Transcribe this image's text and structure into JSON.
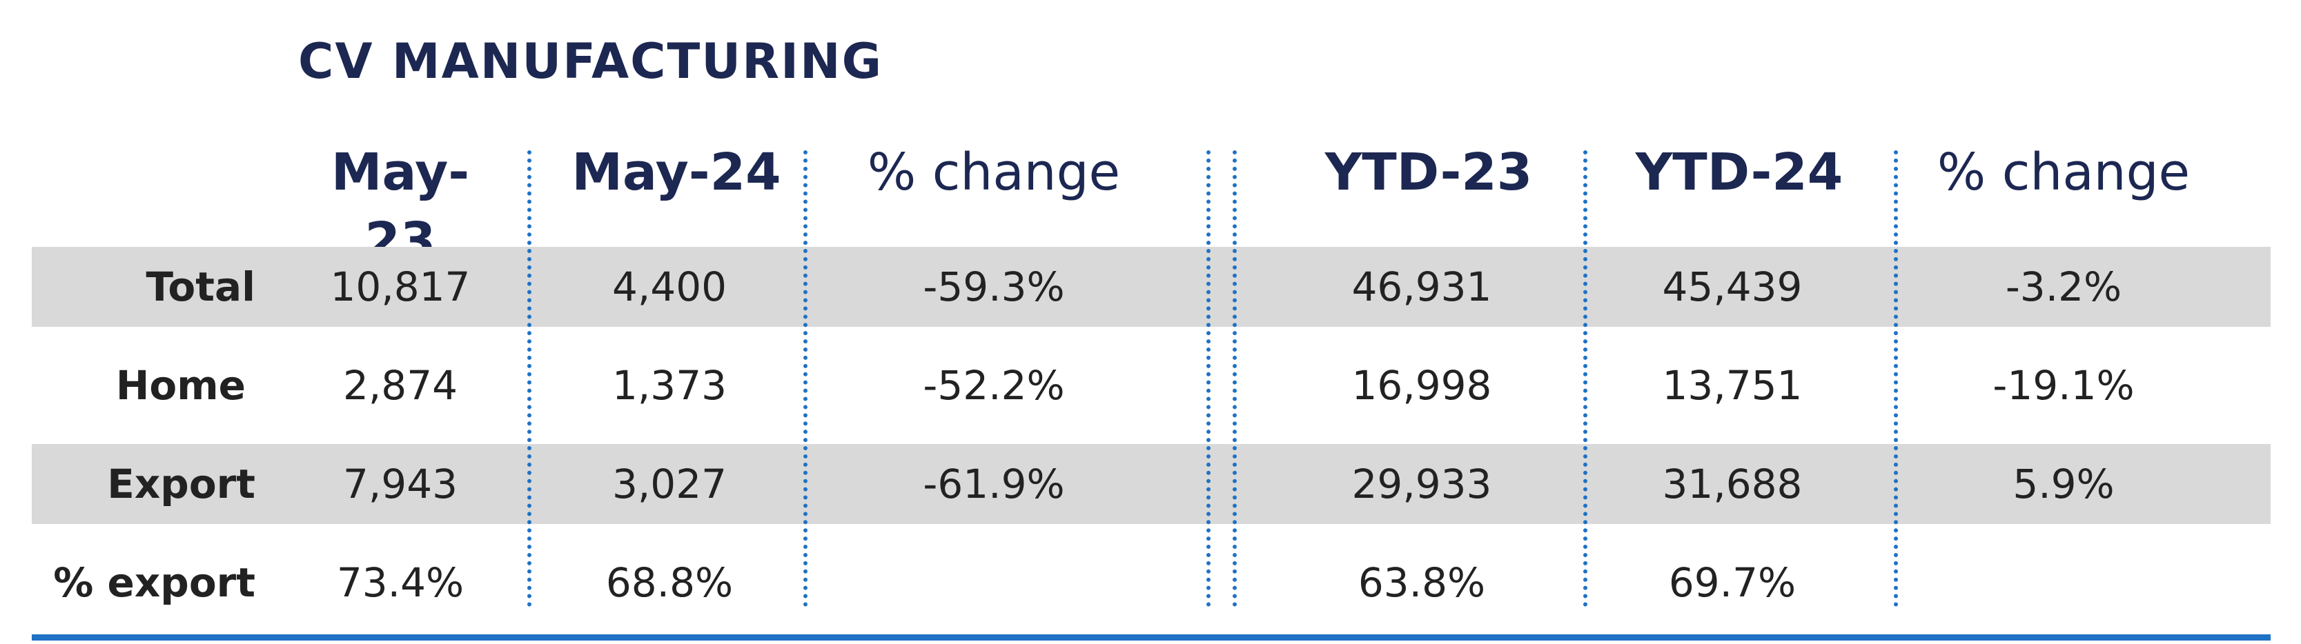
{
  "title": "CV MANUFACTURING",
  "headers": [
    "May-23",
    "May-24",
    "% change",
    "YTD-23",
    "YTD-24",
    "% change"
  ],
  "rows": [
    {
      "label": "Total",
      "values": [
        "10,817",
        "4,400",
        "-59.3%",
        "46,931",
        "45,439",
        "-3.2%"
      ]
    },
    {
      "label": "Home",
      "values": [
        "2,874",
        "1,373",
        "-52.2%",
        "16,998",
        "13,751",
        "-19.1%"
      ]
    },
    {
      "label": "Export",
      "values": [
        "7,943",
        "3,027",
        "-61.9%",
        "29,933",
        "31,688",
        "5.9%"
      ]
    },
    {
      "label": "% export",
      "values": [
        "73.4%",
        "68.8%",
        "",
        "63.8%",
        "69.7%",
        ""
      ]
    }
  ],
  "colors": {
    "title": "#1c2752",
    "accent": "#1f72c4",
    "band": "#d9d9d9"
  }
}
